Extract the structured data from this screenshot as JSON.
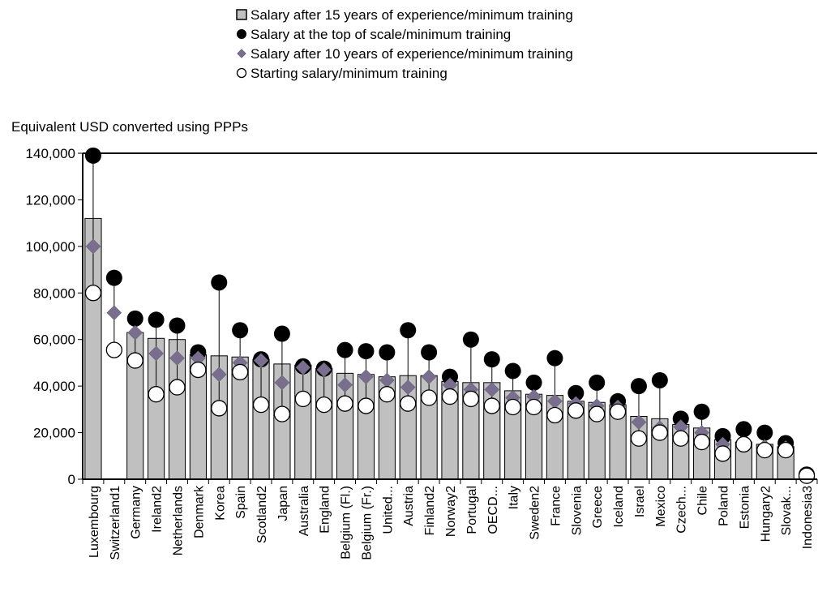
{
  "chart_data": {
    "type": "bar",
    "ylabel": "Equivalent USD converted using PPPs",
    "ylim": [
      0,
      140000
    ],
    "yticks": [
      0,
      20000,
      40000,
      60000,
      80000,
      100000,
      120000,
      140000
    ],
    "ytick_labels": [
      "0",
      "20,000",
      "40,000",
      "60,000",
      "80,000",
      "100,000",
      "120,000",
      "140,000"
    ],
    "legend_position": "top",
    "categories": [
      "Luxembourg",
      "Switzerland1",
      "Germany",
      "Ireland2",
      "Netherlands",
      "Denmark",
      "Korea",
      "Spain",
      "Scotland2",
      "Japan",
      "Australia",
      "England",
      "Belgium (Fl.)",
      "Belgium (Fr.)",
      "United...",
      "Austria",
      "Finland2",
      "Norway2",
      "Portugal",
      "OECD...",
      "Italy",
      "Sweden2",
      "France",
      "Slovenia",
      "Greece",
      "Iceland",
      "Israel",
      "Mexico",
      "Czech...",
      "Chile",
      "Poland",
      "Estonia",
      "Hungary2",
      "Slovak...",
      "Indonesia3"
    ],
    "series": [
      {
        "name": "Salary after 15 years of experience/minimum training",
        "mark": "bar",
        "color": "#c0c0c0",
        "values": [
          112000,
          null,
          63000,
          60500,
          60000,
          53500,
          53000,
          52500,
          51500,
          49500,
          49000,
          47500,
          45500,
          45000,
          44000,
          44500,
          44500,
          42000,
          41500,
          41500,
          38000,
          36500,
          36000,
          33500,
          33000,
          32000,
          27000,
          26000,
          23500,
          22000,
          17000,
          16000,
          15000,
          14000,
          null
        ]
      },
      {
        "name": "Salary at the top of scale/minimum training",
        "mark": "circle-filled",
        "color": "#000000",
        "values": [
          139000,
          86500,
          69000,
          68500,
          66000,
          54500,
          84500,
          64000,
          51500,
          62500,
          48500,
          47500,
          55500,
          55000,
          54500,
          64000,
          54500,
          44000,
          60000,
          51500,
          46500,
          41500,
          52000,
          37000,
          41500,
          33500,
          40000,
          42500,
          26000,
          29000,
          18500,
          21500,
          20000,
          15500,
          2000
        ]
      },
      {
        "name": "Salary after 10 years of experience/minimum training",
        "mark": "diamond",
        "color": "#7a6e8e",
        "values": [
          100000,
          71500,
          63000,
          54000,
          52000,
          52000,
          45000,
          50000,
          51000,
          41500,
          48000,
          47000,
          40500,
          44000,
          42500,
          39500,
          44000,
          40500,
          38500,
          38500,
          35000,
          35500,
          33500,
          32500,
          31500,
          31000,
          24500,
          22000,
          22500,
          20000,
          15000,
          15500,
          14000,
          13500,
          1500
        ]
      },
      {
        "name": "Starting salary/minimum training",
        "mark": "circle-open",
        "color": "#ffffff",
        "values": [
          80000,
          55500,
          51000,
          36500,
          39500,
          47000,
          30500,
          46000,
          32000,
          28000,
          34500,
          32000,
          32500,
          31500,
          36500,
          32500,
          35000,
          35500,
          34500,
          31500,
          31000,
          31000,
          27500,
          29500,
          28000,
          29000,
          17500,
          20000,
          17500,
          16000,
          11000,
          15000,
          12500,
          12500,
          1500
        ]
      }
    ]
  }
}
